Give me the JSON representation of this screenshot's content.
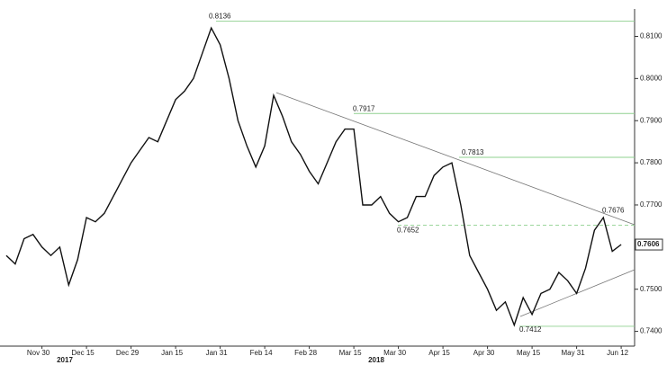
{
  "chart_data": {
    "type": "line",
    "color": "#111111",
    "categories": [
      null,
      null,
      null,
      null,
      "Nov 30",
      null,
      null,
      null,
      null,
      "Dec 15",
      null,
      null,
      null,
      null,
      "Dec 29",
      null,
      null,
      null,
      null,
      "Jan 15",
      null,
      null,
      null,
      null,
      "Jan 31",
      null,
      null,
      null,
      null,
      "Feb 14",
      null,
      null,
      null,
      null,
      "Feb 28",
      null,
      null,
      null,
      null,
      "Mar 15",
      null,
      null,
      null,
      null,
      "Mar 30",
      null,
      null,
      null,
      null,
      "Apr 15",
      null,
      null,
      null,
      null,
      "Apr 30",
      null,
      null,
      null,
      null,
      "May 15",
      null,
      null,
      null,
      null,
      "May 31",
      null,
      null,
      null,
      null,
      "Jun 12"
    ],
    "values": [
      0.758,
      0.756,
      0.762,
      0.763,
      0.76,
      0.758,
      0.76,
      0.751,
      0.757,
      0.767,
      0.766,
      0.768,
      0.772,
      0.776,
      0.78,
      0.783,
      0.786,
      0.785,
      0.79,
      0.795,
      0.797,
      0.8,
      0.806,
      0.812,
      0.808,
      0.8,
      0.79,
      0.784,
      0.779,
      0.784,
      0.796,
      0.791,
      0.785,
      0.782,
      0.778,
      0.775,
      0.78,
      0.785,
      0.788,
      0.788,
      0.77,
      0.77,
      0.772,
      0.768,
      0.766,
      0.767,
      0.772,
      0.772,
      0.777,
      0.779,
      0.78,
      0.77,
      0.758,
      0.754,
      0.75,
      0.745,
      0.747,
      0.7415,
      0.748,
      0.744,
      0.749,
      0.75,
      0.754,
      0.752,
      0.749,
      0.755,
      0.764,
      0.767,
      0.759,
      0.7606
    ],
    "years": [
      "2017",
      "2018"
    ],
    "ylim": [
      0.7365,
      0.8165
    ],
    "yticks": [
      {
        "value": 0.74,
        "label": "0.7400"
      },
      {
        "value": 0.75,
        "label": "0.7500"
      },
      {
        "value": 0.76,
        "label": "0.7600"
      },
      {
        "value": 0.77,
        "label": "0.7700"
      },
      {
        "value": 0.78,
        "label": "0.7800"
      },
      {
        "value": 0.79,
        "label": "0.7900"
      },
      {
        "value": 0.8,
        "label": "0.8000"
      },
      {
        "value": 0.81,
        "label": "0.8100"
      }
    ],
    "levels": [
      0.8136,
      0.7917,
      0.7813,
      0.7676,
      0.7652,
      0.7412
    ],
    "last_price": 0.7606,
    "level_color": "#8fd08f"
  }
}
